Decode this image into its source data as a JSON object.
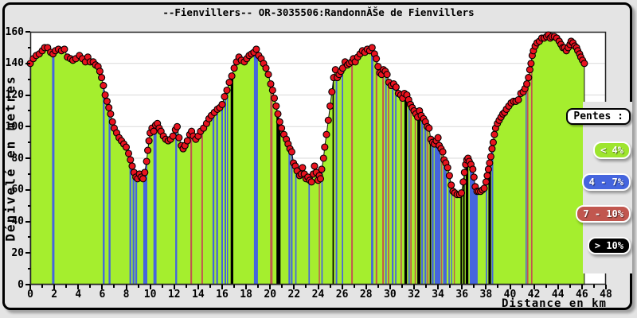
{
  "window": {
    "title": "--Fienvillers-- OR-3035506:RandonnĂŠe de Fienvillers"
  },
  "axes": {
    "y_label": "Dénivelé en metres",
    "x_label": "Distance en km",
    "y_ticks": [
      0,
      20,
      40,
      60,
      80,
      100,
      120,
      140,
      160
    ],
    "x_ticks": [
      0,
      2,
      4,
      6,
      8,
      10,
      12,
      14,
      16,
      18,
      20,
      22,
      24,
      26,
      28,
      30,
      32,
      34,
      36,
      38,
      40,
      42,
      44,
      46,
      48
    ],
    "y_minor_step": 10,
    "x_minor_step": 1
  },
  "legend": {
    "title": "Pentes :",
    "items": [
      {
        "label": "< 4%",
        "range": "<4",
        "color": "#9EE52E"
      },
      {
        "label": "4 - 7%",
        "range": "4-7",
        "color": "#4565DE"
      },
      {
        "label": "7 - 10%",
        "range": "7-10",
        "color": "#C1574F"
      },
      {
        "label": "> 10%",
        "range": ">10",
        "color": "#000000"
      }
    ]
  },
  "colors": {
    "page_bg": "#E4E4E4",
    "plot_bg": "#FFFFFF",
    "grid": "#DADADA",
    "area_fill": "#A5EE2E",
    "outline": "#111111",
    "marker": "#E8131F",
    "marker_stroke": "#000000",
    "bar_4_7": "#4565DE",
    "bar_7_10": "#C1574F",
    "bar_gt10": "#000000",
    "plot_border": "#222222"
  },
  "chart_data": {
    "type": "area",
    "title": "--Fienvillers-- OR-3035506:RandonnĂŠe de Fienvillers",
    "xlabel": "Distance en km",
    "ylabel": "Dénivelé en metres",
    "xlim": [
      0,
      48
    ],
    "ylim": [
      0,
      160
    ],
    "x_unit": "km",
    "y_unit": "m",
    "end_km": 46.2,
    "profile": [
      [
        0,
        140
      ],
      [
        0.25,
        143
      ],
      [
        0.5,
        145
      ],
      [
        0.75,
        146
      ],
      [
        1,
        148
      ],
      [
        1.2,
        150
      ],
      [
        1.45,
        150
      ],
      [
        1.7,
        147
      ],
      [
        1.9,
        146
      ],
      [
        2.1,
        148
      ],
      [
        2.35,
        149
      ],
      [
        2.6,
        148
      ],
      [
        2.85,
        149
      ],
      [
        3.1,
        144
      ],
      [
        3.35,
        143
      ],
      [
        3.55,
        142
      ],
      [
        3.8,
        143
      ],
      [
        4.1,
        145
      ],
      [
        4.35,
        143
      ],
      [
        4.6,
        141
      ],
      [
        4.8,
        144
      ],
      [
        5,
        141
      ],
      [
        5.25,
        141
      ],
      [
        5.45,
        139
      ],
      [
        5.65,
        138
      ],
      [
        5.8,
        135
      ],
      [
        5.95,
        131
      ],
      [
        6.1,
        126
      ],
      [
        6.25,
        120
      ],
      [
        6.4,
        116
      ],
      [
        6.55,
        112
      ],
      [
        6.7,
        108
      ],
      [
        6.85,
        103
      ],
      [
        7,
        99
      ],
      [
        7.2,
        96
      ],
      [
        7.4,
        93
      ],
      [
        7.6,
        91
      ],
      [
        7.8,
        89
      ],
      [
        8,
        87
      ],
      [
        8.2,
        83
      ],
      [
        8.35,
        79
      ],
      [
        8.5,
        75
      ],
      [
        8.65,
        71
      ],
      [
        8.8,
        68
      ],
      [
        8.95,
        67
      ],
      [
        9.1,
        70
      ],
      [
        9.25,
        68
      ],
      [
        9.4,
        67
      ],
      [
        9.55,
        71
      ],
      [
        9.7,
        78
      ],
      [
        9.8,
        85
      ],
      [
        9.9,
        91
      ],
      [
        10,
        96
      ],
      [
        10.15,
        99
      ],
      [
        10.3,
        97
      ],
      [
        10.45,
        101
      ],
      [
        10.6,
        102
      ],
      [
        10.75,
        99
      ],
      [
        10.9,
        97
      ],
      [
        11.1,
        94
      ],
      [
        11.3,
        92
      ],
      [
        11.5,
        91
      ],
      [
        11.7,
        92
      ],
      [
        11.9,
        94
      ],
      [
        12.1,
        98
      ],
      [
        12.25,
        100
      ],
      [
        12.4,
        93
      ],
      [
        12.6,
        88
      ],
      [
        12.75,
        86
      ],
      [
        12.9,
        88
      ],
      [
        13.1,
        91
      ],
      [
        13.3,
        95
      ],
      [
        13.45,
        97
      ],
      [
        13.6,
        94
      ],
      [
        13.8,
        92
      ],
      [
        14,
        94
      ],
      [
        14.2,
        97
      ],
      [
        14.45,
        99
      ],
      [
        14.7,
        102
      ],
      [
        14.9,
        105
      ],
      [
        15.1,
        107
      ],
      [
        15.35,
        109
      ],
      [
        15.6,
        111
      ],
      [
        15.8,
        112
      ],
      [
        16,
        114
      ],
      [
        16.2,
        119
      ],
      [
        16.4,
        123
      ],
      [
        16.6,
        128
      ],
      [
        16.8,
        132
      ],
      [
        17,
        137
      ],
      [
        17.2,
        141
      ],
      [
        17.4,
        144
      ],
      [
        17.6,
        142
      ],
      [
        17.85,
        141
      ],
      [
        18.05,
        143
      ],
      [
        18.25,
        145
      ],
      [
        18.45,
        146
      ],
      [
        18.65,
        147
      ],
      [
        18.85,
        149
      ],
      [
        19.05,
        145
      ],
      [
        19.25,
        143
      ],
      [
        19.45,
        140
      ],
      [
        19.65,
        137
      ],
      [
        19.85,
        133
      ],
      [
        20.05,
        127
      ],
      [
        20.2,
        123
      ],
      [
        20.35,
        118
      ],
      [
        20.5,
        113
      ],
      [
        20.65,
        108
      ],
      [
        20.8,
        103
      ],
      [
        20.95,
        99
      ],
      [
        21.15,
        95
      ],
      [
        21.35,
        92
      ],
      [
        21.5,
        89
      ],
      [
        21.65,
        86
      ],
      [
        21.8,
        84
      ],
      [
        21.95,
        77
      ],
      [
        22.1,
        75
      ],
      [
        22.25,
        72
      ],
      [
        22.45,
        69
      ],
      [
        22.6,
        70
      ],
      [
        22.7,
        74
      ],
      [
        22.85,
        70
      ],
      [
        23,
        67
      ],
      [
        23.15,
        68
      ],
      [
        23.3,
        66
      ],
      [
        23.45,
        65
      ],
      [
        23.6,
        70
      ],
      [
        23.7,
        75
      ],
      [
        23.85,
        71
      ],
      [
        24,
        66
      ],
      [
        24.1,
        69
      ],
      [
        24.2,
        67
      ],
      [
        24.3,
        73
      ],
      [
        24.45,
        80
      ],
      [
        24.55,
        87
      ],
      [
        24.7,
        95
      ],
      [
        24.85,
        104
      ],
      [
        25,
        113
      ],
      [
        25.15,
        122
      ],
      [
        25.3,
        131
      ],
      [
        25.45,
        136
      ],
      [
        25.6,
        131
      ],
      [
        25.75,
        133
      ],
      [
        25.9,
        135
      ],
      [
        26.05,
        137
      ],
      [
        26.25,
        141
      ],
      [
        26.45,
        139
      ],
      [
        26.6,
        140
      ],
      [
        26.8,
        141
      ],
      [
        26.95,
        143
      ],
      [
        27.1,
        141
      ],
      [
        27.3,
        144
      ],
      [
        27.5,
        146
      ],
      [
        27.7,
        148
      ],
      [
        27.9,
        147
      ],
      [
        28.1,
        149
      ],
      [
        28.3,
        148
      ],
      [
        28.5,
        150
      ],
      [
        28.7,
        146
      ],
      [
        28.85,
        143
      ],
      [
        29,
        138
      ],
      [
        29.15,
        134
      ],
      [
        29.3,
        133
      ],
      [
        29.45,
        136
      ],
      [
        29.6,
        135
      ],
      [
        29.75,
        133
      ],
      [
        29.9,
        128
      ],
      [
        30.1,
        126
      ],
      [
        30.3,
        127
      ],
      [
        30.5,
        125
      ],
      [
        30.7,
        121
      ],
      [
        30.9,
        120
      ],
      [
        31.05,
        118
      ],
      [
        31.2,
        121
      ],
      [
        31.4,
        120
      ],
      [
        31.55,
        117
      ],
      [
        31.7,
        114
      ],
      [
        31.85,
        112
      ],
      [
        32,
        110
      ],
      [
        32.15,
        108
      ],
      [
        32.3,
        106
      ],
      [
        32.45,
        110
      ],
      [
        32.6,
        107
      ],
      [
        32.8,
        105
      ],
      [
        32.95,
        103
      ],
      [
        33.1,
        100
      ],
      [
        33.25,
        99
      ],
      [
        33.4,
        92
      ],
      [
        33.55,
        90
      ],
      [
        33.7,
        89
      ],
      [
        33.85,
        91
      ],
      [
        34,
        93
      ],
      [
        34.1,
        88
      ],
      [
        34.25,
        86
      ],
      [
        34.4,
        84
      ],
      [
        34.5,
        79
      ],
      [
        34.65,
        77
      ],
      [
        34.8,
        74
      ],
      [
        34.95,
        69
      ],
      [
        35.1,
        63
      ],
      [
        35.25,
        59
      ],
      [
        35.4,
        58
      ],
      [
        35.6,
        57
      ],
      [
        35.8,
        57
      ],
      [
        35.95,
        58
      ],
      [
        36.1,
        65
      ],
      [
        36.2,
        71
      ],
      [
        36.3,
        76
      ],
      [
        36.4,
        79
      ],
      [
        36.5,
        80
      ],
      [
        36.6,
        78
      ],
      [
        36.75,
        76
      ],
      [
        36.9,
        73
      ],
      [
        37,
        68
      ],
      [
        37.1,
        62
      ],
      [
        37.25,
        59
      ],
      [
        37.4,
        59
      ],
      [
        37.55,
        59
      ],
      [
        37.7,
        60
      ],
      [
        37.85,
        61
      ],
      [
        38,
        65
      ],
      [
        38.1,
        69
      ],
      [
        38.2,
        73
      ],
      [
        38.3,
        77
      ],
      [
        38.4,
        81
      ],
      [
        38.5,
        86
      ],
      [
        38.6,
        90
      ],
      [
        38.7,
        95
      ],
      [
        38.8,
        99
      ],
      [
        38.95,
        102
      ],
      [
        39.1,
        104
      ],
      [
        39.25,
        106
      ],
      [
        39.4,
        108
      ],
      [
        39.55,
        109
      ],
      [
        39.7,
        111
      ],
      [
        39.9,
        113
      ],
      [
        40.1,
        115
      ],
      [
        40.3,
        116
      ],
      [
        40.5,
        116
      ],
      [
        40.7,
        117
      ],
      [
        40.9,
        121
      ],
      [
        41.1,
        122
      ],
      [
        41.25,
        124
      ],
      [
        41.4,
        127
      ],
      [
        41.55,
        131
      ],
      [
        41.65,
        136
      ],
      [
        41.75,
        140
      ],
      [
        41.85,
        145
      ],
      [
        41.95,
        148
      ],
      [
        42.1,
        151
      ],
      [
        42.25,
        153
      ],
      [
        42.45,
        154
      ],
      [
        42.65,
        156
      ],
      [
        42.85,
        156
      ],
      [
        43.05,
        157
      ],
      [
        43.2,
        158
      ],
      [
        43.35,
        156
      ],
      [
        43.5,
        157
      ],
      [
        43.7,
        157
      ],
      [
        43.9,
        156
      ],
      [
        44.1,
        154
      ],
      [
        44.25,
        152
      ],
      [
        44.4,
        150
      ],
      [
        44.55,
        150
      ],
      [
        44.7,
        148
      ],
      [
        44.85,
        150
      ],
      [
        45,
        152
      ],
      [
        45.1,
        154
      ],
      [
        45.25,
        153
      ],
      [
        45.4,
        151
      ],
      [
        45.55,
        150
      ],
      [
        45.65,
        148
      ],
      [
        45.8,
        146
      ],
      [
        45.9,
        144
      ],
      [
        46.05,
        142
      ],
      [
        46.2,
        140
      ]
    ],
    "slope_bars": [
      [
        1.82,
        2.02,
        "4-7"
      ],
      [
        6.05,
        6.2,
        "4-7"
      ],
      [
        6.53,
        6.69,
        "4-7"
      ],
      [
        8.27,
        8.42,
        "4-7"
      ],
      [
        8.53,
        8.69,
        "4-7"
      ],
      [
        8.76,
        8.91,
        "4-7"
      ],
      [
        9.42,
        9.76,
        "4-7"
      ],
      [
        10.27,
        10.53,
        "4-7"
      ],
      [
        12.09,
        12.24,
        "4-7"
      ],
      [
        13.35,
        13.49,
        "7-10"
      ],
      [
        14.27,
        14.4,
        "7-10"
      ],
      [
        15.2,
        15.35,
        "4-7"
      ],
      [
        15.5,
        15.65,
        "4-7"
      ],
      [
        15.93,
        16.07,
        "4-7"
      ],
      [
        16.2,
        16.33,
        "4-7"
      ],
      [
        16.4,
        16.5,
        "4-7"
      ],
      [
        16.71,
        16.93,
        ">10"
      ],
      [
        18.65,
        18.98,
        "4-7"
      ],
      [
        20.0,
        20.2,
        "7-10"
      ],
      [
        20.53,
        20.87,
        ">10"
      ],
      [
        21.53,
        21.67,
        "4-7"
      ],
      [
        21.73,
        21.87,
        "4-7"
      ],
      [
        22.09,
        22.2,
        "4-7"
      ],
      [
        23.2,
        23.31,
        "4-7"
      ],
      [
        24.05,
        24.15,
        "7-10"
      ],
      [
        24.27,
        24.38,
        "4-7"
      ],
      [
        25.2,
        25.31,
        ">10"
      ],
      [
        25.47,
        25.6,
        "4-7"
      ],
      [
        25.98,
        26.09,
        "4-7"
      ],
      [
        26.76,
        26.89,
        "7-10"
      ],
      [
        28.42,
        28.6,
        "4-7"
      ],
      [
        28.8,
        28.93,
        "7-10"
      ],
      [
        29.35,
        29.49,
        "7-10"
      ],
      [
        29.6,
        29.71,
        "4-7"
      ],
      [
        29.82,
        29.93,
        "7-10"
      ],
      [
        30.15,
        30.29,
        "4-7"
      ],
      [
        30.42,
        30.53,
        "4-7"
      ],
      [
        30.87,
        30.98,
        "7-10"
      ],
      [
        31.2,
        31.42,
        ">10"
      ],
      [
        31.53,
        31.65,
        "4-7"
      ],
      [
        31.69,
        31.8,
        "7-10"
      ],
      [
        32.05,
        32.15,
        "7-10"
      ],
      [
        32.27,
        32.53,
        ">10"
      ],
      [
        32.6,
        32.76,
        "4-7"
      ],
      [
        32.87,
        33.02,
        "4-7"
      ],
      [
        33.09,
        33.2,
        "7-10"
      ],
      [
        33.31,
        33.42,
        ">10"
      ],
      [
        33.47,
        33.64,
        "4-7"
      ],
      [
        33.71,
        34.2,
        "4-7"
      ],
      [
        34.25,
        34.33,
        "7-10"
      ],
      [
        34.42,
        34.71,
        "4-7"
      ],
      [
        34.87,
        34.98,
        "4-7"
      ],
      [
        35.09,
        35.15,
        "4-7"
      ],
      [
        35.31,
        35.38,
        "7-10"
      ],
      [
        35.87,
        36.0,
        ">10"
      ],
      [
        36.09,
        36.22,
        ">10"
      ],
      [
        36.31,
        36.53,
        ">10"
      ],
      [
        36.65,
        37.31,
        "4-7"
      ],
      [
        37.98,
        38.09,
        "4-7"
      ],
      [
        38.2,
        38.42,
        ">10"
      ],
      [
        38.47,
        38.6,
        "4-7"
      ],
      [
        41.3,
        41.38,
        "4-7"
      ],
      [
        41.42,
        41.53,
        "7-10"
      ],
      [
        41.75,
        41.87,
        "7-10"
      ]
    ],
    "slope_categories": {
      "<4": "green area fill",
      "4-7": "blue bar",
      "7-10": "red bar",
      ">10": "black bar"
    }
  }
}
